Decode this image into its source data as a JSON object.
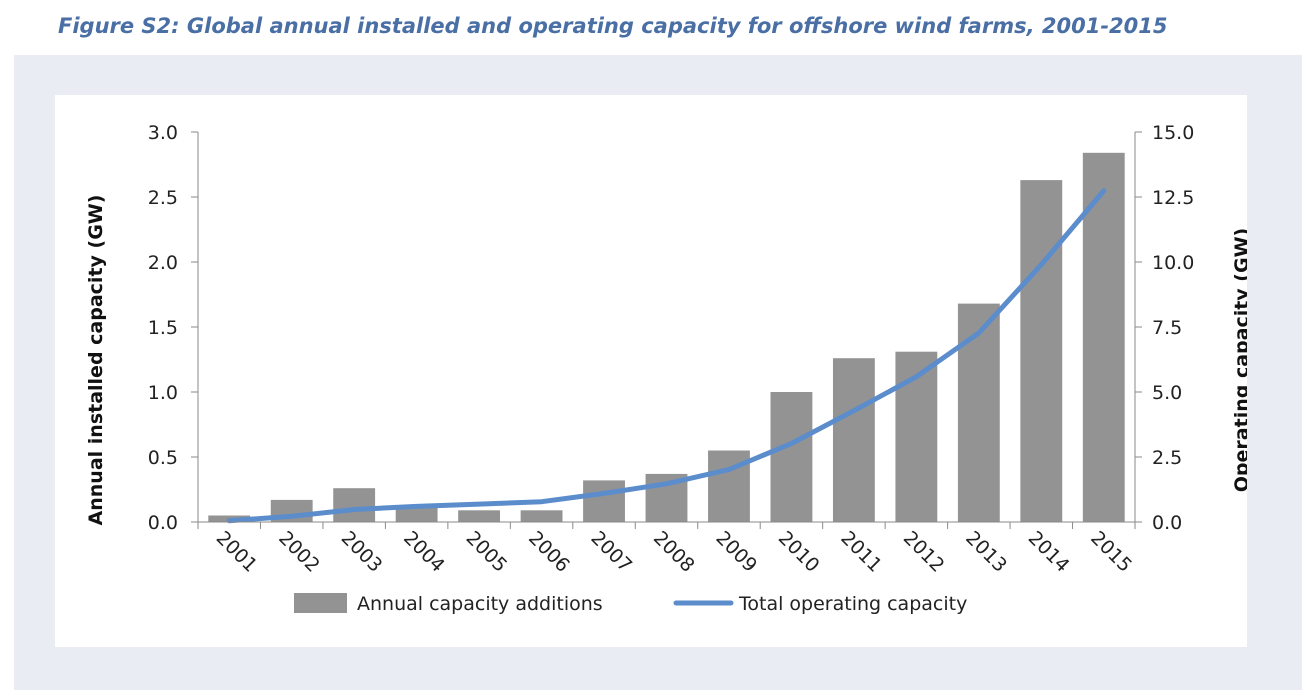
{
  "title": "Figure S2: Global annual installed and operating capacity for offshore wind farms, 2001-2015",
  "chart_data": {
    "type": "bar+line",
    "categories": [
      "2001",
      "2002",
      "2003",
      "2004",
      "2005",
      "2006",
      "2007",
      "2008",
      "2009",
      "2010",
      "2011",
      "2012",
      "2013",
      "2014",
      "2015"
    ],
    "series": [
      {
        "name": "Annual capacity additions",
        "type": "bar",
        "axis": "left",
        "color": "#939393",
        "values": [
          0.05,
          0.17,
          0.26,
          0.12,
          0.09,
          0.09,
          0.32,
          0.37,
          0.55,
          1.0,
          1.26,
          1.31,
          1.68,
          2.63,
          2.84
        ]
      },
      {
        "name": "Total operating capacity",
        "type": "line",
        "axis": "right",
        "color": "#5b8ccc",
        "values": [
          0.05,
          0.22,
          0.48,
          0.6,
          0.69,
          0.78,
          1.1,
          1.47,
          2.02,
          3.02,
          4.28,
          5.59,
          7.27,
          9.9,
          12.74
        ]
      }
    ],
    "left_axis": {
      "label": "Annual installed capacity (GW)",
      "min": 0,
      "max": 3.0,
      "ticks": [
        "0.0",
        "0.5",
        "1.0",
        "1.5",
        "2.0",
        "2.5",
        "3.0"
      ]
    },
    "right_axis": {
      "label": "Operating capacity (GW)",
      "min": 0,
      "max": 15.0,
      "ticks": [
        "0.0",
        "2.5",
        "5.0",
        "7.5",
        "10.0",
        "12.5",
        "15.0"
      ]
    },
    "grid": false,
    "legend_position": "bottom"
  }
}
